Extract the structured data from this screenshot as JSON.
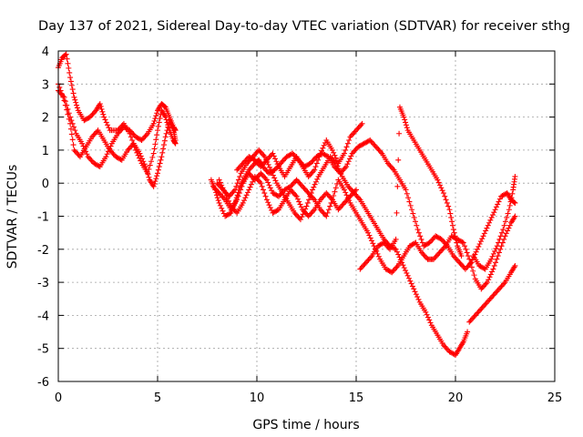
{
  "chart_data": {
    "type": "scatter",
    "title": "Day 137 of 2021, Sidereal Day-to-day VTEC variation (SDTVAR) for receiver sthg",
    "xlabel": "GPS time / hours",
    "ylabel": "SDTVAR / TECUs",
    "xlim": [
      0,
      25
    ],
    "ylim": [
      -6,
      4
    ],
    "xticks": [
      0,
      5,
      10,
      15,
      20,
      25
    ],
    "yticks": [
      -6,
      -5,
      -4,
      -3,
      -2,
      -1,
      0,
      1,
      2,
      3,
      4
    ],
    "grid": true,
    "marker": "+",
    "color": "#ff0000",
    "series": [
      {
        "points": [
          [
            0.0,
            3.5
          ],
          [
            0.2,
            3.8
          ],
          [
            0.4,
            3.9
          ],
          [
            0.6,
            3.2
          ],
          [
            0.8,
            2.6
          ],
          [
            1.0,
            2.2
          ],
          [
            1.3,
            1.9
          ],
          [
            1.6,
            2.0
          ],
          [
            1.9,
            2.2
          ],
          [
            2.1,
            2.4
          ],
          [
            2.3,
            2.0
          ],
          [
            2.6,
            1.6
          ],
          [
            3.0,
            1.6
          ],
          [
            3.3,
            1.8
          ],
          [
            3.6,
            1.5
          ],
          [
            3.9,
            1.0
          ],
          [
            4.2,
            0.6
          ],
          [
            4.5,
            0.3
          ],
          [
            4.8,
            0.9
          ],
          [
            5.0,
            1.6
          ],
          [
            5.2,
            2.2
          ],
          [
            5.4,
            2.0
          ],
          [
            5.6,
            1.6
          ],
          [
            5.8,
            1.3
          ],
          [
            5.9,
            1.2
          ]
        ]
      },
      {
        "points": [
          [
            0.0,
            2.8
          ],
          [
            0.3,
            2.6
          ],
          [
            0.6,
            2.0
          ],
          [
            0.9,
            1.5
          ],
          [
            1.2,
            1.2
          ],
          [
            1.5,
            0.8
          ],
          [
            1.8,
            0.6
          ],
          [
            2.1,
            0.5
          ],
          [
            2.4,
            0.8
          ],
          [
            2.7,
            1.2
          ],
          [
            3.0,
            1.5
          ],
          [
            3.3,
            1.7
          ],
          [
            3.6,
            1.6
          ],
          [
            3.9,
            1.4
          ],
          [
            4.2,
            1.3
          ],
          [
            4.5,
            1.5
          ],
          [
            4.8,
            1.8
          ],
          [
            5.0,
            2.2
          ],
          [
            5.2,
            2.4
          ],
          [
            5.4,
            2.3
          ],
          [
            5.6,
            2.0
          ],
          [
            5.8,
            1.7
          ],
          [
            5.9,
            1.6
          ]
        ]
      },
      {
        "points": [
          [
            0.0,
            3.0
          ],
          [
            0.3,
            2.5
          ],
          [
            0.6,
            1.8
          ],
          [
            0.8,
            1.0
          ],
          [
            1.1,
            0.8
          ],
          [
            1.4,
            1.1
          ],
          [
            1.7,
            1.4
          ],
          [
            2.0,
            1.6
          ],
          [
            2.3,
            1.3
          ],
          [
            2.6,
            1.0
          ],
          [
            2.9,
            0.8
          ],
          [
            3.2,
            0.7
          ],
          [
            3.5,
            1.0
          ],
          [
            3.8,
            1.2
          ],
          [
            4.1,
            0.9
          ],
          [
            4.4,
            0.5
          ],
          [
            4.6,
            0.1
          ],
          [
            4.8,
            -0.1
          ],
          [
            5.0,
            0.3
          ],
          [
            5.2,
            0.8
          ],
          [
            5.4,
            1.4
          ],
          [
            5.6,
            1.9
          ],
          [
            5.8,
            1.6
          ],
          [
            5.9,
            1.3
          ]
        ]
      },
      {
        "points": [
          [
            7.7,
            0.1
          ],
          [
            7.9,
            -0.2
          ],
          [
            8.1,
            -0.6
          ],
          [
            8.4,
            -1.0
          ],
          [
            8.7,
            -0.9
          ],
          [
            8.9,
            -0.6
          ],
          [
            9.1,
            -0.2
          ],
          [
            9.3,
            0.1
          ],
          [
            9.6,
            0.4
          ],
          [
            9.9,
            0.6
          ],
          [
            10.1,
            0.7
          ],
          [
            10.3,
            0.5
          ],
          [
            10.6,
            0.3
          ],
          [
            10.9,
            0.4
          ],
          [
            11.2,
            0.6
          ],
          [
            11.5,
            0.8
          ],
          [
            11.8,
            0.9
          ],
          [
            12.1,
            0.7
          ],
          [
            12.4,
            0.5
          ],
          [
            12.7,
            0.6
          ],
          [
            13.0,
            0.8
          ],
          [
            13.3,
            0.9
          ],
          [
            13.6,
            0.8
          ],
          [
            13.9,
            0.5
          ],
          [
            14.2,
            0.3
          ],
          [
            14.5,
            0.5
          ],
          [
            14.8,
            0.9
          ],
          [
            15.1,
            1.1
          ],
          [
            15.4,
            1.2
          ],
          [
            15.7,
            1.3
          ],
          [
            16.0,
            1.1
          ],
          [
            16.3,
            0.9
          ],
          [
            16.6,
            0.6
          ],
          [
            16.9,
            0.4
          ],
          [
            17.2,
            0.1
          ],
          [
            17.5,
            -0.2
          ],
          [
            17.8,
            -0.8
          ],
          [
            18.1,
            -1.4
          ],
          [
            18.4,
            -1.9
          ],
          [
            18.7,
            -1.8
          ],
          [
            19.0,
            -1.6
          ],
          [
            19.3,
            -1.7
          ],
          [
            19.6,
            -1.9
          ],
          [
            19.9,
            -2.2
          ],
          [
            20.2,
            -2.4
          ],
          [
            20.5,
            -2.6
          ],
          [
            20.8,
            -2.4
          ],
          [
            21.1,
            -2.0
          ],
          [
            21.4,
            -1.6
          ],
          [
            21.7,
            -1.2
          ],
          [
            22.0,
            -0.8
          ],
          [
            22.3,
            -0.4
          ],
          [
            22.6,
            -0.3
          ],
          [
            22.8,
            -0.5
          ],
          [
            23.0,
            -0.6
          ]
        ]
      },
      {
        "points": [
          [
            7.8,
            -0.1
          ],
          [
            8.1,
            -0.3
          ],
          [
            8.4,
            -0.5
          ],
          [
            8.7,
            -0.8
          ],
          [
            9.0,
            -0.5
          ],
          [
            9.3,
            0.0
          ],
          [
            9.6,
            0.3
          ],
          [
            9.9,
            0.1
          ],
          [
            10.2,
            0.3
          ],
          [
            10.5,
            0.1
          ],
          [
            10.8,
            -0.3
          ],
          [
            11.1,
            -0.4
          ],
          [
            11.4,
            -0.2
          ],
          [
            11.7,
            -0.1
          ],
          [
            12.0,
            0.1
          ],
          [
            12.3,
            -0.1
          ],
          [
            12.6,
            -0.3
          ],
          [
            12.9,
            -0.5
          ],
          [
            13.2,
            -0.8
          ],
          [
            13.5,
            -1.0
          ],
          [
            13.8,
            -0.5
          ],
          [
            14.1,
            0.1
          ],
          [
            14.4,
            -0.2
          ],
          [
            14.7,
            -0.6
          ],
          [
            15.0,
            -0.9
          ],
          [
            15.3,
            -1.2
          ],
          [
            15.6,
            -1.5
          ],
          [
            15.9,
            -1.9
          ],
          [
            16.2,
            -2.3
          ],
          [
            16.5,
            -2.6
          ],
          [
            16.8,
            -2.7
          ],
          [
            17.1,
            -2.5
          ],
          [
            17.4,
            -2.2
          ],
          [
            17.7,
            -1.9
          ],
          [
            18.0,
            -1.8
          ],
          [
            18.3,
            -2.1
          ],
          [
            18.6,
            -2.3
          ],
          [
            18.9,
            -2.3
          ],
          [
            19.2,
            -2.1
          ],
          [
            19.5,
            -1.9
          ],
          [
            19.8,
            -1.6
          ],
          [
            20.1,
            -1.7
          ],
          [
            20.4,
            -1.8
          ],
          [
            20.7,
            -2.3
          ],
          [
            21.0,
            -2.9
          ],
          [
            21.3,
            -3.2
          ],
          [
            21.6,
            -3.0
          ],
          [
            21.9,
            -2.6
          ],
          [
            22.2,
            -2.1
          ],
          [
            22.5,
            -1.6
          ],
          [
            22.8,
            -1.2
          ],
          [
            23.0,
            -1.0
          ]
        ]
      },
      {
        "points": [
          [
            8.0,
            0.0
          ],
          [
            8.3,
            -0.2
          ],
          [
            8.6,
            -0.4
          ],
          [
            8.9,
            -0.2
          ],
          [
            9.2,
            0.3
          ],
          [
            9.5,
            0.6
          ],
          [
            9.8,
            0.8
          ],
          [
            10.1,
            1.0
          ],
          [
            10.4,
            0.8
          ],
          [
            10.7,
            0.4
          ],
          [
            11.0,
            0.0
          ],
          [
            11.3,
            -0.3
          ],
          [
            11.6,
            -0.6
          ],
          [
            11.9,
            -0.9
          ],
          [
            12.2,
            -1.1
          ],
          [
            12.5,
            -0.7
          ],
          [
            12.8,
            -0.2
          ],
          [
            13.1,
            0.2
          ],
          [
            13.4,
            0.5
          ],
          [
            13.7,
            0.8
          ],
          [
            14.0,
            0.6
          ],
          [
            14.3,
            0.2
          ],
          [
            14.6,
            -0.1
          ],
          [
            14.9,
            -0.3
          ],
          [
            15.2,
            -0.5
          ],
          [
            15.5,
            -0.8
          ],
          [
            15.8,
            -1.1
          ],
          [
            16.1,
            -1.4
          ],
          [
            16.4,
            -1.7
          ],
          [
            16.7,
            -1.9
          ],
          [
            17.0,
            -2.0
          ],
          [
            17.3,
            -2.4
          ],
          [
            17.6,
            -2.8
          ],
          [
            17.9,
            -3.2
          ],
          [
            18.2,
            -3.6
          ],
          [
            18.5,
            -3.9
          ],
          [
            18.8,
            -4.3
          ],
          [
            19.1,
            -4.6
          ],
          [
            19.4,
            -4.9
          ],
          [
            19.7,
            -5.1
          ],
          [
            20.0,
            -5.2
          ],
          [
            20.2,
            -5.0
          ],
          [
            20.4,
            -4.8
          ],
          [
            20.6,
            -4.5
          ]
        ]
      },
      {
        "points": [
          [
            8.1,
            0.1
          ],
          [
            8.4,
            -0.3
          ],
          [
            8.7,
            -0.7
          ],
          [
            9.0,
            -0.9
          ],
          [
            9.3,
            -0.6
          ],
          [
            9.6,
            -0.2
          ],
          [
            9.9,
            0.2
          ],
          [
            10.2,
            0.0
          ],
          [
            10.5,
            -0.5
          ],
          [
            10.8,
            -0.9
          ],
          [
            11.1,
            -0.8
          ],
          [
            11.4,
            -0.5
          ],
          [
            11.7,
            -0.2
          ],
          [
            12.0,
            -0.4
          ],
          [
            12.3,
            -0.8
          ],
          [
            12.6,
            -1.0
          ],
          [
            12.9,
            -0.8
          ],
          [
            13.2,
            -0.5
          ],
          [
            13.5,
            -0.3
          ],
          [
            13.8,
            -0.5
          ],
          [
            14.1,
            -0.8
          ],
          [
            14.4,
            -0.6
          ],
          [
            14.7,
            -0.4
          ],
          [
            15.0,
            -0.2
          ]
        ]
      },
      {
        "points": [
          [
            9.0,
            0.4
          ],
          [
            9.3,
            0.6
          ],
          [
            9.6,
            0.8
          ],
          [
            9.9,
            0.7
          ],
          [
            10.2,
            0.5
          ],
          [
            10.5,
            0.7
          ],
          [
            10.8,
            0.9
          ],
          [
            11.1,
            0.5
          ],
          [
            11.4,
            0.2
          ],
          [
            11.7,
            0.5
          ],
          [
            12.0,
            0.8
          ],
          [
            12.3,
            0.5
          ],
          [
            12.6,
            0.2
          ],
          [
            12.9,
            0.4
          ],
          [
            13.2,
            0.9
          ],
          [
            13.5,
            1.3
          ],
          [
            13.8,
            1.0
          ],
          [
            14.1,
            0.6
          ],
          [
            14.4,
            0.9
          ],
          [
            14.7,
            1.4
          ],
          [
            15.0,
            1.6
          ],
          [
            15.3,
            1.8
          ]
        ]
      },
      {
        "points": [
          [
            15.2,
            -2.6
          ],
          [
            15.5,
            -2.4
          ],
          [
            15.8,
            -2.2
          ],
          [
            16.1,
            -1.9
          ],
          [
            16.4,
            -1.8
          ],
          [
            16.7,
            -2.0
          ],
          [
            17.0,
            -1.7
          ],
          [
            17.2,
            2.3
          ],
          [
            17.4,
            2.0
          ],
          [
            17.6,
            1.6
          ],
          [
            17.9,
            1.3
          ],
          [
            18.2,
            1.0
          ],
          [
            18.5,
            0.7
          ],
          [
            18.8,
            0.4
          ],
          [
            19.1,
            0.1
          ],
          [
            19.4,
            -0.3
          ],
          [
            19.7,
            -0.8
          ],
          [
            19.9,
            -1.4
          ],
          [
            20.1,
            -1.9
          ],
          [
            20.3,
            -2.2
          ]
        ]
      },
      {
        "points": [
          [
            20.7,
            -4.2
          ],
          [
            21.0,
            -4.0
          ],
          [
            21.3,
            -3.8
          ],
          [
            21.6,
            -3.6
          ],
          [
            21.9,
            -3.4
          ],
          [
            22.2,
            -3.2
          ],
          [
            22.5,
            -3.0
          ],
          [
            22.8,
            -2.7
          ],
          [
            23.0,
            -2.5
          ]
        ]
      },
      {
        "points": [
          [
            20.9,
            -2.2
          ],
          [
            21.2,
            -2.5
          ],
          [
            21.5,
            -2.6
          ],
          [
            21.8,
            -2.3
          ],
          [
            22.1,
            -1.9
          ],
          [
            22.4,
            -1.4
          ],
          [
            22.7,
            -0.8
          ],
          [
            22.9,
            -0.2
          ],
          [
            23.0,
            0.2
          ]
        ]
      }
    ]
  }
}
